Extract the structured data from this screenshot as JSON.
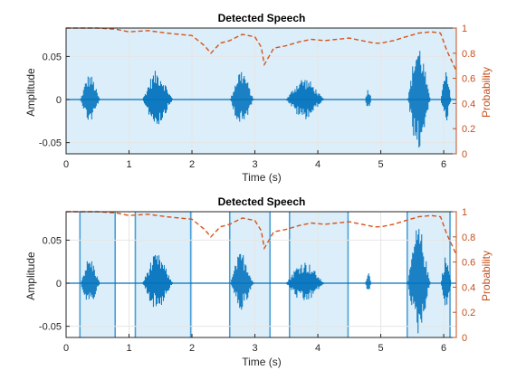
{
  "colors": {
    "signal": "#0072bd",
    "probability": "#d95319",
    "probability_axis": "#c4501e",
    "speech_region": "#dbeef9",
    "region_edge": "#4a9fd6",
    "grid": "#e6e6e6",
    "axis": "#262626"
  },
  "chart_data": [
    {
      "type": "line",
      "title": "Detected Speech",
      "xlabel": "Time (s)",
      "ylabel": "Amplitude",
      "ylabel_right": "Probability",
      "xlim": [
        0,
        6.2
      ],
      "ylim": [
        -0.063,
        0.083
      ],
      "ylim_right": [
        0,
        1
      ],
      "xticks": [
        "0",
        "1",
        "2",
        "3",
        "4",
        "5",
        "6"
      ],
      "yticks": [
        "-0.05",
        "0",
        "0.05"
      ],
      "yticks_right": [
        "0",
        "0.2",
        "0.4",
        "0.6",
        "0.8",
        "1"
      ],
      "grid": true,
      "speech_regions": [
        [
          0,
          6.2
        ]
      ],
      "series": [
        {
          "kind": "audio waveform (envelope peaks)",
          "bursts": [
            {
              "start": 0.22,
              "end": 0.68,
              "peak": 0.037
            },
            {
              "start": 1.2,
              "end": 1.92,
              "peak": 0.042
            },
            {
              "start": 2.6,
              "end": 3.15,
              "peak": 0.045
            },
            {
              "start": 3.48,
              "end": 4.38,
              "peak": 0.032
            },
            {
              "start": 4.75,
              "end": 4.9,
              "peak": 0.017
            },
            {
              "start": 5.42,
              "end": 5.95,
              "peak": 0.083
            },
            {
              "start": 5.95,
              "end": 6.2,
              "peak": 0.04
            }
          ]
        },
        {
          "kind": "speech probability",
          "style": "dashed",
          "x": [
            0,
            0.5,
            0.8,
            1.0,
            1.3,
            1.6,
            2.0,
            2.2,
            2.3,
            2.45,
            2.6,
            2.8,
            3.0,
            3.1,
            3.15,
            3.3,
            3.5,
            3.7,
            3.9,
            4.1,
            4.3,
            4.5,
            4.7,
            4.9,
            5.0,
            5.2,
            5.4,
            5.6,
            5.8,
            5.95,
            6.05,
            6.2
          ],
          "y": [
            1.0,
            1.0,
            0.99,
            0.97,
            0.98,
            0.96,
            0.94,
            0.86,
            0.8,
            0.88,
            0.9,
            0.95,
            0.93,
            0.85,
            0.71,
            0.84,
            0.86,
            0.89,
            0.91,
            0.9,
            0.91,
            0.92,
            0.9,
            0.88,
            0.88,
            0.9,
            0.93,
            0.96,
            0.97,
            0.96,
            0.82,
            0.66
          ]
        }
      ]
    },
    {
      "type": "line",
      "title": "Detected Speech",
      "xlabel": "Time (s)",
      "ylabel": "Amplitude",
      "ylabel_right": "Probability",
      "xlim": [
        0,
        6.2
      ],
      "ylim": [
        -0.063,
        0.083
      ],
      "ylim_right": [
        0,
        1
      ],
      "xticks": [
        "0",
        "1",
        "2",
        "3",
        "4",
        "5",
        "6"
      ],
      "yticks": [
        "-0.05",
        "0",
        "0.05"
      ],
      "yticks_right": [
        "0",
        "0.2",
        "0.4",
        "0.6",
        "0.8",
        "1"
      ],
      "grid": true,
      "speech_regions": [
        [
          0.22,
          0.78
        ],
        [
          1.1,
          1.98
        ],
        [
          2.6,
          3.24
        ],
        [
          3.55,
          4.48
        ],
        [
          5.42,
          6.1
        ]
      ],
      "series": [
        {
          "kind": "audio waveform (envelope peaks)",
          "bursts": [
            {
              "start": 0.22,
              "end": 0.68,
              "peak": 0.037
            },
            {
              "start": 1.2,
              "end": 1.92,
              "peak": 0.042
            },
            {
              "start": 2.6,
              "end": 3.15,
              "peak": 0.045
            },
            {
              "start": 3.48,
              "end": 4.38,
              "peak": 0.032
            },
            {
              "start": 4.75,
              "end": 4.9,
              "peak": 0.017
            },
            {
              "start": 5.42,
              "end": 5.95,
              "peak": 0.083
            },
            {
              "start": 5.95,
              "end": 6.2,
              "peak": 0.04
            }
          ]
        },
        {
          "kind": "speech probability",
          "style": "dashed",
          "x": [
            0,
            0.5,
            0.8,
            1.0,
            1.3,
            1.6,
            2.0,
            2.2,
            2.3,
            2.45,
            2.6,
            2.8,
            3.0,
            3.1,
            3.15,
            3.3,
            3.5,
            3.7,
            3.9,
            4.1,
            4.3,
            4.5,
            4.7,
            4.9,
            5.0,
            5.2,
            5.4,
            5.6,
            5.8,
            5.95,
            6.05,
            6.2
          ],
          "y": [
            1.0,
            1.0,
            0.99,
            0.97,
            0.98,
            0.96,
            0.94,
            0.86,
            0.8,
            0.88,
            0.9,
            0.95,
            0.93,
            0.85,
            0.71,
            0.84,
            0.86,
            0.89,
            0.91,
            0.9,
            0.91,
            0.92,
            0.9,
            0.88,
            0.88,
            0.9,
            0.93,
            0.96,
            0.97,
            0.96,
            0.82,
            0.66
          ]
        }
      ]
    }
  ]
}
